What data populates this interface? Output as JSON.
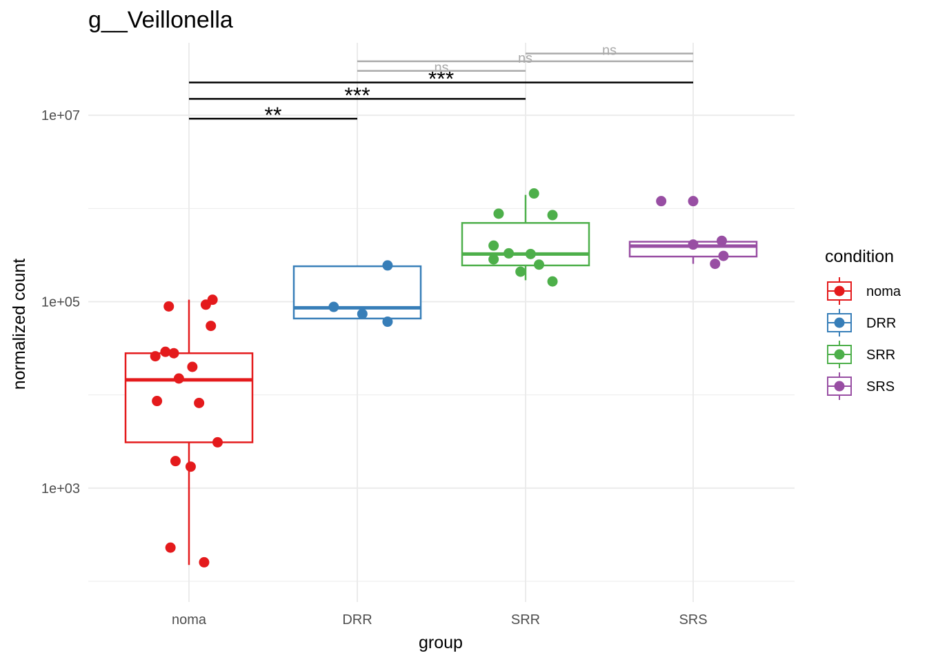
{
  "chart_data": {
    "type": "box",
    "title": "g__Veillonella",
    "xlabel": "group",
    "ylabel": "normalized count",
    "y_scale": "log10",
    "ylim": [
      60,
      60000000
    ],
    "grid": true,
    "categories": [
      "noma",
      "DRR",
      "SRR",
      "SRS"
    ],
    "y_ticks": [
      {
        "value": 1000,
        "label": "1e+03"
      },
      {
        "value": 100000,
        "label": "1e+05"
      },
      {
        "value": 10000000,
        "label": "1e+07"
      }
    ],
    "legend": {
      "title": "condition",
      "position": "right",
      "entries": [
        "noma",
        "DRR",
        "SRR",
        "SRS"
      ]
    },
    "series": [
      {
        "category": "noma",
        "color": "#e41a1c",
        "box": {
          "whisker_low": 150,
          "q1": 3100,
          "median": 14500,
          "q3": 28000,
          "whisker_high": 105000
        },
        "points": [
          {
            "x_offset": -0.2,
            "y": 26000
          },
          {
            "x_offset": -0.14,
            "y": 29000
          },
          {
            "x_offset": -0.09,
            "y": 28000
          },
          {
            "x_offset": -0.06,
            "y": 15000
          },
          {
            "x_offset": 0.02,
            "y": 20000
          },
          {
            "x_offset": -0.19,
            "y": 8600
          },
          {
            "x_offset": 0.06,
            "y": 8200
          },
          {
            "x_offset": 0.17,
            "y": 3100
          },
          {
            "x_offset": -0.08,
            "y": 1950
          },
          {
            "x_offset": 0.01,
            "y": 1700
          },
          {
            "x_offset": -0.11,
            "y": 230
          },
          {
            "x_offset": 0.09,
            "y": 160
          },
          {
            "x_offset": -0.12,
            "y": 89000
          },
          {
            "x_offset": 0.1,
            "y": 93000
          },
          {
            "x_offset": 0.14,
            "y": 105000
          },
          {
            "x_offset": 0.13,
            "y": 55000
          }
        ]
      },
      {
        "category": "DRR",
        "color": "#377eb8",
        "box": {
          "whisker_low": 65000,
          "q1": 66000,
          "median": 86000,
          "q3": 240000,
          "whisker_high": 245000
        },
        "points": [
          {
            "x_offset": 0.18,
            "y": 245000
          },
          {
            "x_offset": -0.14,
            "y": 88000
          },
          {
            "x_offset": 0.03,
            "y": 74000
          },
          {
            "x_offset": 0.18,
            "y": 61000
          }
        ]
      },
      {
        "category": "SRR",
        "color": "#4daf4a",
        "box": {
          "whisker_low": 170000,
          "q1": 245000,
          "median": 325000,
          "q3": 700000,
          "whisker_high": 1400000
        },
        "points": [
          {
            "x_offset": 0.05,
            "y": 1450000
          },
          {
            "x_offset": -0.16,
            "y": 880000
          },
          {
            "x_offset": 0.16,
            "y": 850000
          },
          {
            "x_offset": -0.19,
            "y": 400000
          },
          {
            "x_offset": -0.1,
            "y": 330000
          },
          {
            "x_offset": 0.03,
            "y": 325000
          },
          {
            "x_offset": -0.19,
            "y": 285000
          },
          {
            "x_offset": 0.08,
            "y": 250000
          },
          {
            "x_offset": -0.03,
            "y": 210000
          },
          {
            "x_offset": 0.16,
            "y": 165000
          }
        ]
      },
      {
        "category": "SRS",
        "color": "#984ea3",
        "box": {
          "whisker_low": 255000,
          "q1": 305000,
          "median": 395000,
          "q3": 440000,
          "whisker_high": 445000
        },
        "points": [
          {
            "x_offset": -0.19,
            "y": 1200000
          },
          {
            "x_offset": 0.0,
            "y": 1200000
          },
          {
            "x_offset": 0.17,
            "y": 450000
          },
          {
            "x_offset": 0.0,
            "y": 410000
          },
          {
            "x_offset": 0.18,
            "y": 310000
          },
          {
            "x_offset": 0.13,
            "y": 255000
          }
        ]
      }
    ],
    "comparisons": [
      {
        "from": "noma",
        "to": "DRR",
        "y": 9200000,
        "label": "**",
        "significant": true
      },
      {
        "from": "noma",
        "to": "SRR",
        "y": 15000000,
        "label": "***",
        "significant": true
      },
      {
        "from": "noma",
        "to": "SRS",
        "y": 22500000,
        "label": "***",
        "significant": true
      },
      {
        "from": "DRR",
        "to": "SRR",
        "y": 30000000,
        "label": "ns",
        "significant": false
      },
      {
        "from": "DRR",
        "to": "SRS",
        "y": 38000000,
        "label": "ns",
        "significant": false
      },
      {
        "from": "SRR",
        "to": "SRS",
        "y": 46000000,
        "label": "ns",
        "significant": false
      }
    ]
  }
}
